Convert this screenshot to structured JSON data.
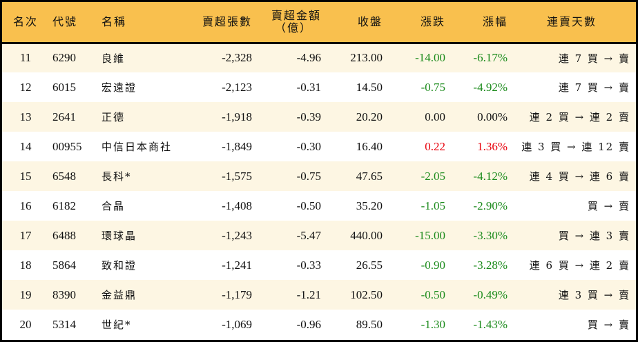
{
  "headers": {
    "rank": "名次",
    "code": "代號",
    "name": "名稱",
    "sell_volume": "賣超張數",
    "sell_amount": "賣超金額",
    "sell_amount_unit": "（億）",
    "close": "收盤",
    "change": "漲跌",
    "pct": "漲幅",
    "streak": "連賣天數"
  },
  "colors": {
    "header_bg": "#f9c04e",
    "row_alt": "#fdf6e3",
    "down": "#1a8a1a",
    "up": "#e8000b"
  },
  "rows": [
    {
      "rank": "11",
      "code": "6290",
      "name": "良維",
      "sell_volume": "-2,328",
      "sell_amount": "-4.96",
      "close": "213.00",
      "change": "-14.00",
      "pct": "-6.17%",
      "streak": "連 7 買 → 賣",
      "dir": "down"
    },
    {
      "rank": "12",
      "code": "6015",
      "name": "宏遠證",
      "sell_volume": "-2,123",
      "sell_amount": "-0.31",
      "close": "14.50",
      "change": "-0.75",
      "pct": "-4.92%",
      "streak": "連 7 買 → 賣",
      "dir": "down"
    },
    {
      "rank": "13",
      "code": "2641",
      "name": "正德",
      "sell_volume": "-1,918",
      "sell_amount": "-0.39",
      "close": "20.20",
      "change": "0.00",
      "pct": "0.00%",
      "streak": "連 2 買 → 連 2 賣",
      "dir": "flat"
    },
    {
      "rank": "14",
      "code": "00955",
      "name": "中信日本商社",
      "sell_volume": "-1,849",
      "sell_amount": "-0.30",
      "close": "16.40",
      "change": "0.22",
      "pct": "1.36%",
      "streak": "連 3 買 → 連 12 賣",
      "dir": "up"
    },
    {
      "rank": "15",
      "code": "6548",
      "name": "長科*",
      "sell_volume": "-1,575",
      "sell_amount": "-0.75",
      "close": "47.65",
      "change": "-2.05",
      "pct": "-4.12%",
      "streak": "連 4 買 → 連 6 賣",
      "dir": "down"
    },
    {
      "rank": "16",
      "code": "6182",
      "name": "合晶",
      "sell_volume": "-1,408",
      "sell_amount": "-0.50",
      "close": "35.20",
      "change": "-1.05",
      "pct": "-2.90%",
      "streak": "買 → 賣",
      "dir": "down"
    },
    {
      "rank": "17",
      "code": "6488",
      "name": "環球晶",
      "sell_volume": "-1,243",
      "sell_amount": "-5.47",
      "close": "440.00",
      "change": "-15.00",
      "pct": "-3.30%",
      "streak": "買 → 連 3 賣",
      "dir": "down"
    },
    {
      "rank": "18",
      "code": "5864",
      "name": "致和證",
      "sell_volume": "-1,241",
      "sell_amount": "-0.33",
      "close": "26.55",
      "change": "-0.90",
      "pct": "-3.28%",
      "streak": "連 6 買 → 連 2 賣",
      "dir": "down"
    },
    {
      "rank": "19",
      "code": "8390",
      "name": "金益鼎",
      "sell_volume": "-1,179",
      "sell_amount": "-1.21",
      "close": "102.50",
      "change": "-0.50",
      "pct": "-0.49%",
      "streak": "連 3 買 → 賣",
      "dir": "down"
    },
    {
      "rank": "20",
      "code": "5314",
      "name": "世紀*",
      "sell_volume": "-1,069",
      "sell_amount": "-0.96",
      "close": "89.50",
      "change": "-1.30",
      "pct": "-1.43%",
      "streak": "買 → 賣",
      "dir": "down"
    }
  ]
}
